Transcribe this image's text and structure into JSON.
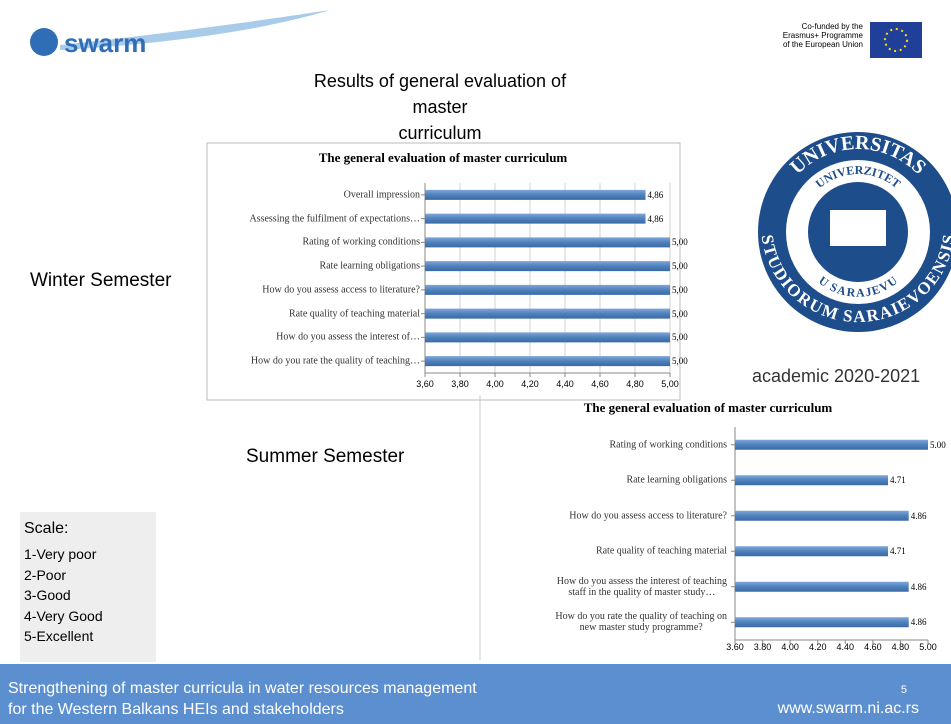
{
  "logo": "swarm",
  "title": "Results of general evaluation of master\ncurriculum",
  "eu_text": "Co-funded by the\nErasmus+ Programme\nof the European Union",
  "seal": {
    "top": "UNIVERSITAS",
    "inner": "UNIVERZITET",
    "lower": "U SARAJEVU",
    "bottom": "STUDIORUM SARAIEVOENSIS"
  },
  "winter_label": "Winter Semester",
  "summer_label": "Summer Semester",
  "academic": "academic 2020-2021",
  "scale": {
    "title": "Scale:",
    "items": [
      "1-Very poor",
      "2-Poor",
      "3-Good",
      "4-Very Good",
      "5-Excellent"
    ]
  },
  "footer": {
    "line1": "Strengthening of master curricula in water resources  management",
    "line2": "for the Western Balkans HEIs and stakeholders",
    "page": "5",
    "url": "www.swarm.ni.ac.rs"
  },
  "chart_data": [
    {
      "type": "bar",
      "orientation": "horizontal",
      "title": "The general evaluation of master curriculum",
      "categories": [
        "Overall impression",
        "Assessing the fulfilment of expectations…",
        "Rating of working conditions",
        "Rate learning obligations",
        "How do you assess access to literature?",
        "Rate quality of teaching material",
        "How do you assess the interest of…",
        "How do you rate the quality of teaching…"
      ],
      "values": [
        4.86,
        4.86,
        5,
        5,
        5,
        5,
        5,
        5
      ],
      "value_labels": [
        "4,86",
        "4,86",
        "5,00",
        "5,00",
        "5,00",
        "5,00",
        "5,00",
        "5,00"
      ],
      "color": "#4f81bd",
      "grid": true,
      "xlim": [
        3.6,
        5.0
      ],
      "xticks": [
        {
          "value": 3.6,
          "label": "3,60"
        },
        {
          "value": 3.8,
          "label": "3,80"
        },
        {
          "value": 4.0,
          "label": "4,00"
        },
        {
          "value": 4.2,
          "label": "4,20"
        },
        {
          "value": 4.4,
          "label": "4,40"
        },
        {
          "value": 4.6,
          "label": "4,60"
        },
        {
          "value": 4.8,
          "label": "4,80"
        },
        {
          "value": 5.0,
          "label": "5,00"
        }
      ]
    },
    {
      "type": "bar",
      "orientation": "horizontal",
      "title": "The general evaluation of master curriculum",
      "categories": [
        "Rating of working conditions",
        "Rate learning obligations",
        "How do you assess access to literature?",
        "Rate quality of teaching material",
        "How do you assess the interest of teaching\nstaff in the quality of master study…",
        "How do you rate the quality of teaching on\nnew master study programme?"
      ],
      "values": [
        5,
        4.71,
        4.86,
        4.71,
        4.86,
        4.86
      ],
      "value_labels": [
        "5.00",
        "4.71",
        "4.86",
        "4.71",
        "4.86",
        "4.86"
      ],
      "color": "#4f81bd",
      "grid": false,
      "xlim": [
        3.6,
        5.0
      ],
      "xticks": [
        {
          "value": 3.6,
          "label": "3.60"
        },
        {
          "value": 3.8,
          "label": "3.80"
        },
        {
          "value": 4.0,
          "label": "4.00"
        },
        {
          "value": 4.2,
          "label": "4.20"
        },
        {
          "value": 4.4,
          "label": "4.40"
        },
        {
          "value": 4.6,
          "label": "4.60"
        },
        {
          "value": 4.8,
          "label": "4.80"
        },
        {
          "value": 5.0,
          "label": "5.00"
        }
      ]
    }
  ]
}
